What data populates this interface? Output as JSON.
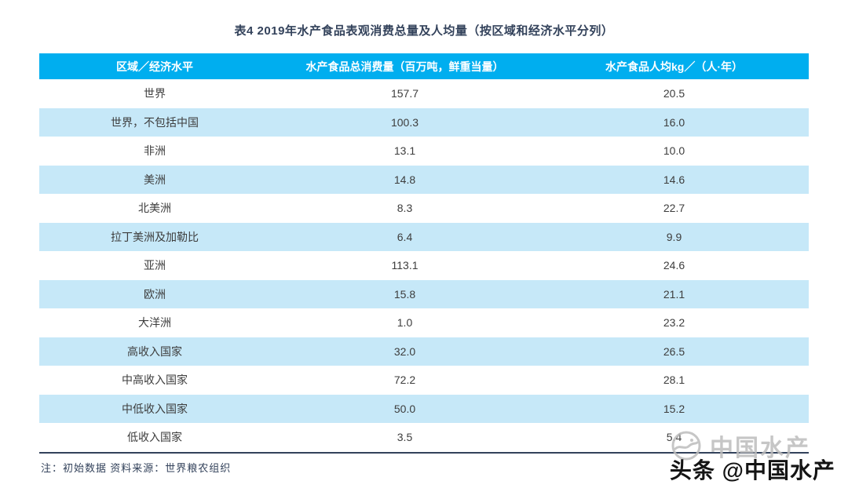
{
  "title": "表4 2019年水产食品表观消费总量及人均量（按区域和经济水平分列）",
  "table": {
    "headers": [
      "区域／经济水平",
      "水产食品总消费量（百万吨，鲜重当量）",
      "水产食品人均kg／（人·年）"
    ],
    "rows": [
      [
        "世界",
        "157.7",
        "20.5"
      ],
      [
        "世界，不包括中国",
        "100.3",
        "16.0"
      ],
      [
        "非洲",
        "13.1",
        "10.0"
      ],
      [
        "美洲",
        "14.8",
        "14.6"
      ],
      [
        "北美洲",
        "8.3",
        "22.7"
      ],
      [
        "拉丁美洲及加勒比",
        "6.4",
        "9.9"
      ],
      [
        "亚洲",
        "113.1",
        "24.6"
      ],
      [
        "欧洲",
        "15.8",
        "21.1"
      ],
      [
        "大洋洲",
        "1.0",
        "23.2"
      ],
      [
        "高收入国家",
        "32.0",
        "26.5"
      ],
      [
        "中高收入国家",
        "72.2",
        "28.1"
      ],
      [
        "中低收入国家",
        "50.0",
        "15.2"
      ],
      [
        "低收入国家",
        "3.5",
        "5.4"
      ]
    ]
  },
  "note": "注：初始数据  资料来源：世界粮农组织",
  "watermark": {
    "gray_text": "中国水产",
    "black_text": "头条 @中国水产",
    "logo_icon": "fishery-globe-logo-icon"
  },
  "colors": {
    "header_bg": "#00AEEF",
    "row_alt_bg": "#C6E8F8",
    "title_color": "#33425B",
    "table_bottom_border": "#33425B",
    "header_text": "#FFFFFF",
    "body_text": "#3D3D3D",
    "watermark_gray": "#BDBDBD",
    "watermark_black": "#141414"
  },
  "chart_data": {
    "type": "table",
    "title": "表4 2019年水产食品表观消费总量及人均量（按区域和经济水平分列）",
    "columns": [
      "区域／经济水平",
      "水产食品总消费量（百万吨，鲜重当量）",
      "水产食品人均kg／（人·年）"
    ],
    "rows": [
      [
        "世界",
        157.7,
        20.5
      ],
      [
        "世界，不包括中国",
        100.3,
        16.0
      ],
      [
        "非洲",
        13.1,
        10.0
      ],
      [
        "美洲",
        14.8,
        14.6
      ],
      [
        "北美洲",
        8.3,
        22.7
      ],
      [
        "拉丁美洲及加勒比",
        6.4,
        9.9
      ],
      [
        "亚洲",
        113.1,
        24.6
      ],
      [
        "欧洲",
        15.8,
        21.1
      ],
      [
        "大洋洲",
        1.0,
        23.2
      ],
      [
        "高收入国家",
        32.0,
        26.5
      ],
      [
        "中高收入国家",
        72.2,
        28.1
      ],
      [
        "中低收入国家",
        50.0,
        15.2
      ],
      [
        "低收入国家",
        3.5,
        5.4
      ]
    ],
    "note": "注：初始数据  资料来源：世界粮农组织",
    "legend_position": "none",
    "grid": false
  }
}
